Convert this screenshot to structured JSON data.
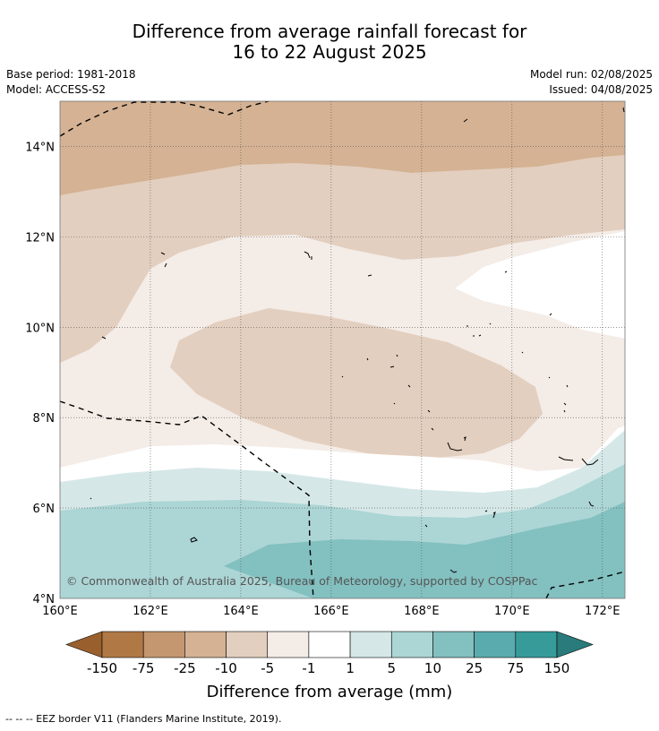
{
  "title": {
    "line1": "Difference from average rainfall forecast for",
    "line2": "16 to 22 August 2025"
  },
  "meta": {
    "base_period": "Base period: 1981-2018",
    "model": "Model: ACCESS-S2",
    "model_run": "Model run: 02/08/2025",
    "issued": "Issued: 04/08/2025"
  },
  "map": {
    "lon_range": [
      160,
      172.5
    ],
    "lat_range": [
      4,
      15
    ],
    "lon_ticks": [
      "160°E",
      "162°E",
      "164°E",
      "166°E",
      "168°E",
      "170°E",
      "172°E"
    ],
    "lat_ticks": [
      "4°N",
      "6°N",
      "8°N",
      "10°N",
      "12°N",
      "14°N"
    ],
    "grid": true,
    "copyright": "© Commonwealth of Australia 2025, Bureau of Meteorology, supported by COSPPac"
  },
  "colorbar": {
    "title": "Difference from average (mm)",
    "labels": [
      "-150",
      "-75",
      "-25",
      "-10",
      "-5",
      "-1",
      "1",
      "5",
      "10",
      "25",
      "75",
      "150"
    ],
    "colors": [
      "#99602e",
      "#b07844",
      "#c49770",
      "#d4b293",
      "#e3cfbf",
      "#f4ece7",
      "#ffffff",
      "#d5e8e7",
      "#acd5d5",
      "#83c0c0",
      "#5aabad",
      "#379b9a",
      "#2a7b7b"
    ]
  },
  "footer": {
    "legend": "--  --  -- EEZ border V11 (Flanders Marine Institute, 2019)."
  }
}
